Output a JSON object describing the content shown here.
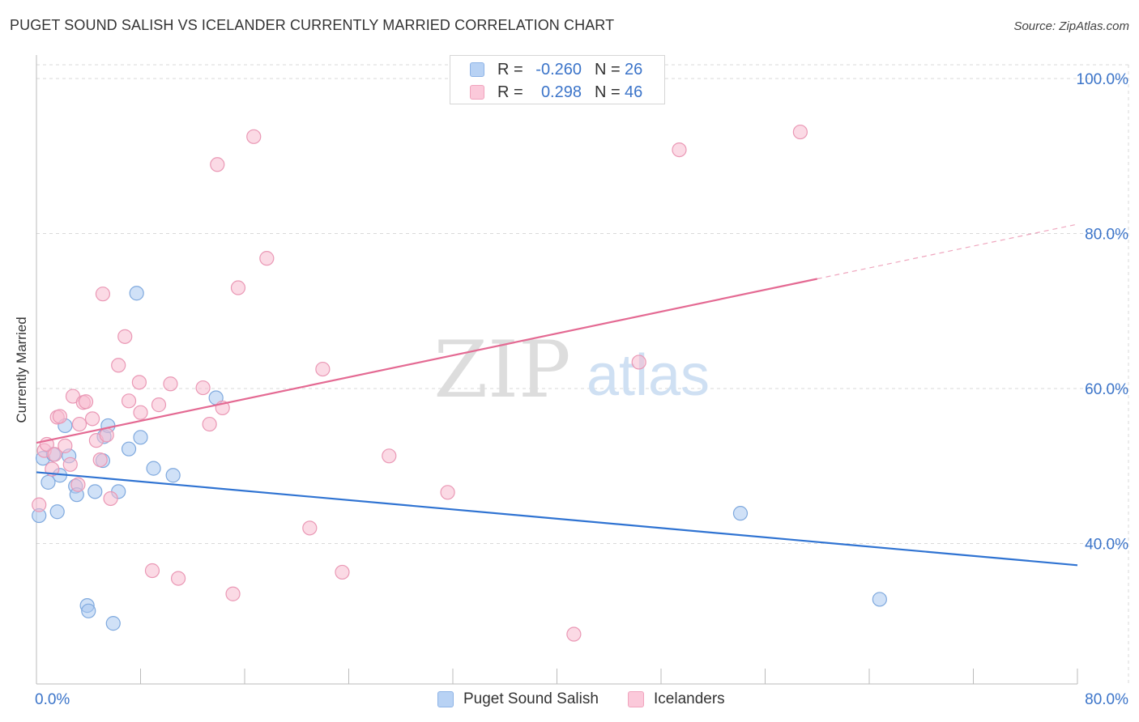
{
  "title": "PUGET SOUND SALISH VS ICELANDER CURRENTLY MARRIED CORRELATION CHART",
  "source": "Source: ZipAtlas.com",
  "watermark": {
    "zip": "ZIP",
    "atlas": "atlas"
  },
  "legend": {
    "rows": [
      {
        "r_label": "R =",
        "r_value": "-0.260",
        "n_label": "N =",
        "n_value": "26"
      },
      {
        "r_label": "R =",
        "r_value": "0.298",
        "n_label": "N =",
        "n_value": "46"
      }
    ]
  },
  "bottom_legend": [
    "Puget Sound Salish",
    "Icelanders"
  ],
  "colors": {
    "blue_fill": "#a9c8f0",
    "blue_stroke": "#7fa9de",
    "blue_line": "#2f73d2",
    "pink_fill": "#f8bcd0",
    "pink_stroke": "#ea98b5",
    "pink_line": "#e46a93",
    "tick_label": "#3b74c9",
    "grid": "#d9d9d9"
  },
  "chart_data": {
    "type": "scatter",
    "title": "PUGET SOUND SALISH VS ICELANDER CURRENTLY MARRIED CORRELATION CHART",
    "xlabel": "",
    "ylabel": "Currently Married",
    "xlim": [
      0,
      80
    ],
    "ylim": [
      20,
      102
    ],
    "x_tick_labels": [
      {
        "value": 0,
        "label": "0.0%"
      },
      {
        "value": 80,
        "label": "80.0%"
      }
    ],
    "x_minor_ticks": [
      8,
      16,
      24,
      32,
      40,
      48,
      56,
      64,
      72,
      80
    ],
    "y_ticks": [
      {
        "value": 100,
        "label": "100.0%"
      },
      {
        "value": 80,
        "label": "80.0%"
      },
      {
        "value": 60,
        "label": "60.0%"
      },
      {
        "value": 40,
        "label": "40.0%"
      }
    ],
    "series": [
      {
        "name": "Puget Sound Salish",
        "color": "blue",
        "points": [
          [
            0.2,
            43.6
          ],
          [
            0.5,
            51.0
          ],
          [
            0.9,
            47.9
          ],
          [
            1.3,
            51.5
          ],
          [
            1.6,
            44.1
          ],
          [
            1.8,
            48.8
          ],
          [
            2.2,
            55.2
          ],
          [
            2.5,
            51.3
          ],
          [
            3.0,
            47.4
          ],
          [
            3.1,
            46.3
          ],
          [
            3.9,
            32.0
          ],
          [
            4.0,
            31.3
          ],
          [
            4.5,
            46.7
          ],
          [
            5.1,
            50.7
          ],
          [
            5.2,
            53.8
          ],
          [
            5.5,
            55.2
          ],
          [
            5.9,
            29.7
          ],
          [
            6.3,
            46.7
          ],
          [
            7.1,
            52.2
          ],
          [
            7.7,
            72.3
          ],
          [
            8.0,
            53.7
          ],
          [
            9.0,
            49.7
          ],
          [
            10.5,
            48.8
          ],
          [
            13.8,
            58.8
          ],
          [
            54.1,
            43.9
          ],
          [
            64.8,
            32.8
          ]
        ],
        "trend": {
          "x": [
            0,
            80
          ],
          "y": [
            49.2,
            37.2
          ],
          "solid_to": 80
        }
      },
      {
        "name": "Icelanders",
        "color": "pink",
        "points": [
          [
            0.2,
            45.0
          ],
          [
            0.6,
            52.0
          ],
          [
            0.8,
            52.8
          ],
          [
            1.2,
            49.6
          ],
          [
            1.4,
            51.5
          ],
          [
            1.6,
            56.3
          ],
          [
            1.8,
            56.4
          ],
          [
            2.2,
            52.6
          ],
          [
            2.6,
            50.2
          ],
          [
            2.8,
            59.0
          ],
          [
            3.2,
            47.6
          ],
          [
            3.3,
            55.4
          ],
          [
            3.6,
            58.2
          ],
          [
            3.8,
            58.3
          ],
          [
            4.3,
            56.1
          ],
          [
            4.6,
            53.3
          ],
          [
            4.9,
            50.8
          ],
          [
            5.1,
            72.2
          ],
          [
            5.4,
            54.0
          ],
          [
            5.7,
            45.8
          ],
          [
            6.3,
            63.0
          ],
          [
            6.8,
            66.7
          ],
          [
            7.1,
            58.4
          ],
          [
            7.9,
            60.8
          ],
          [
            8.0,
            56.9
          ],
          [
            8.9,
            36.5
          ],
          [
            9.4,
            57.9
          ],
          [
            10.3,
            60.6
          ],
          [
            10.9,
            35.5
          ],
          [
            12.8,
            60.1
          ],
          [
            13.3,
            55.4
          ],
          [
            13.9,
            88.9
          ],
          [
            14.3,
            57.5
          ],
          [
            15.1,
            33.5
          ],
          [
            15.5,
            73.0
          ],
          [
            16.7,
            92.5
          ],
          [
            17.7,
            76.8
          ],
          [
            21.0,
            42.0
          ],
          [
            22.0,
            62.5
          ],
          [
            23.5,
            36.3
          ],
          [
            27.1,
            51.3
          ],
          [
            31.6,
            46.6
          ],
          [
            41.3,
            28.3
          ],
          [
            46.3,
            63.4
          ],
          [
            49.4,
            90.8
          ],
          [
            58.7,
            93.1
          ]
        ],
        "trend": {
          "x": [
            0,
            80
          ],
          "y": [
            53.0,
            81.2
          ],
          "solid_to": 60
        }
      }
    ]
  }
}
